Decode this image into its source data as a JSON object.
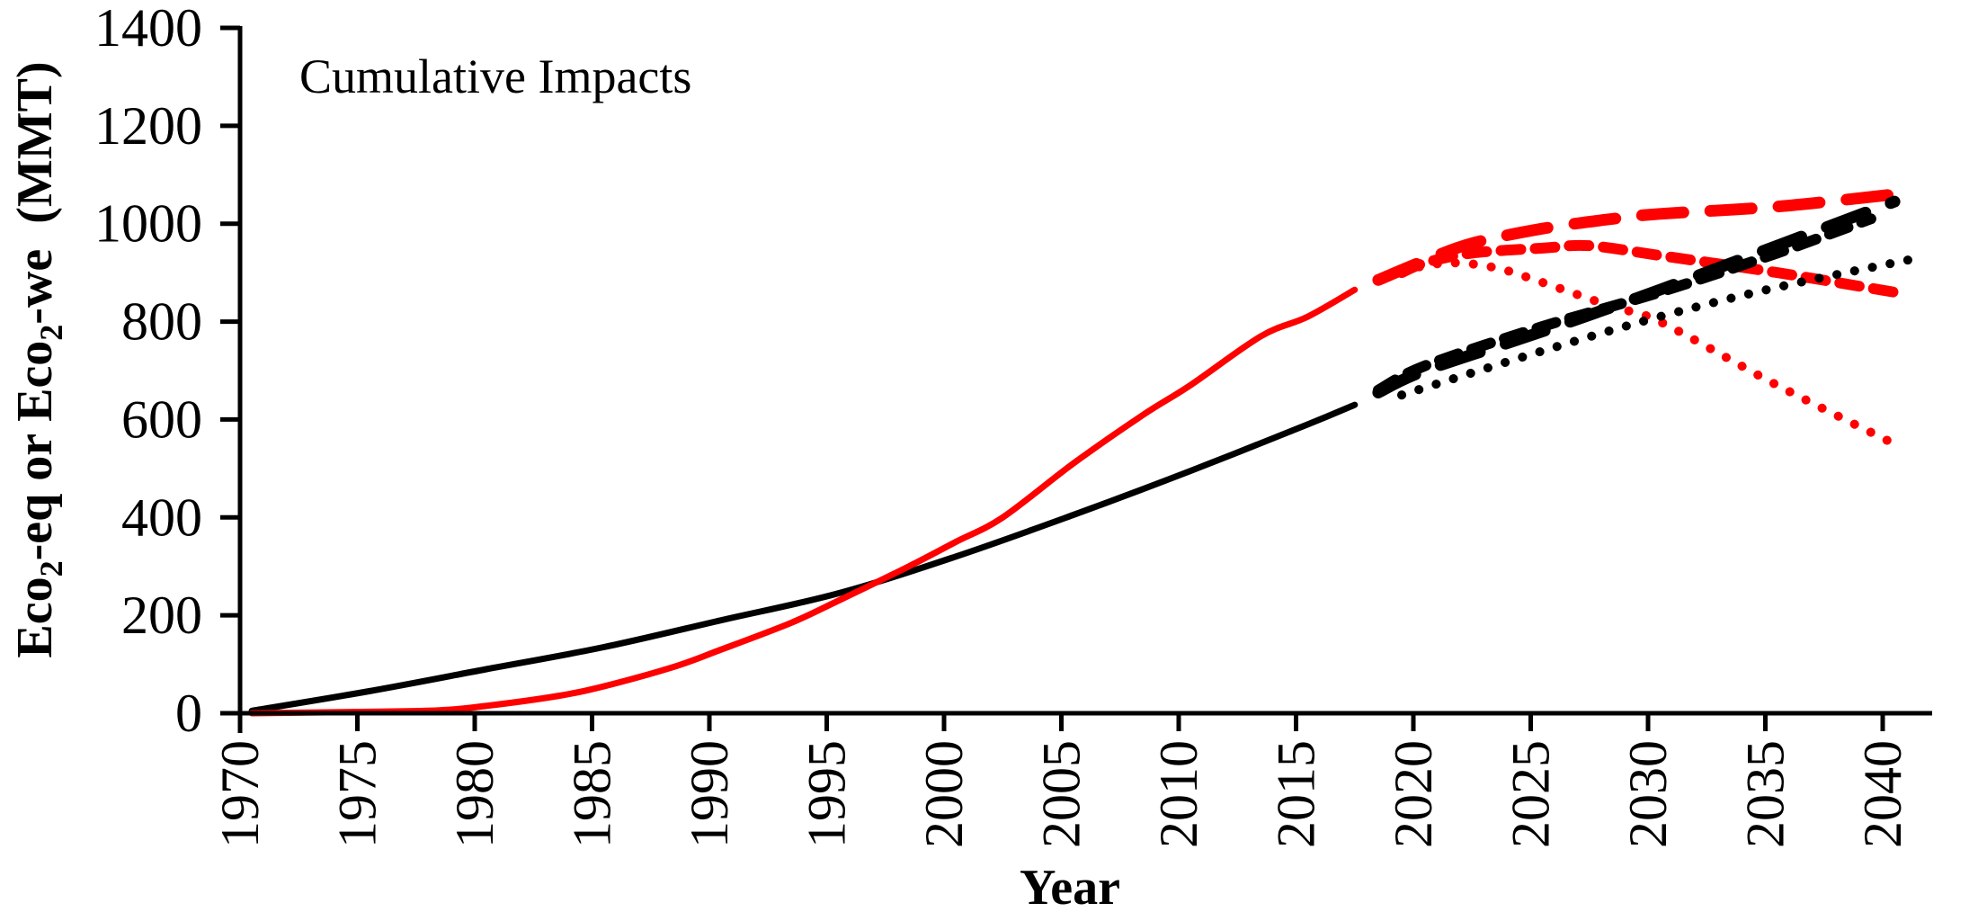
{
  "chart_data": {
    "type": "line",
    "title": "",
    "annotation": "Cumulative Impacts",
    "xlabel": "Year",
    "ylabel": {
      "parts": [
        "Eco",
        "2",
        "-eq or Eco",
        "2",
        "-we  (MMT)"
      ],
      "text": "Eco2-eq or Eco2-we  (MMT)"
    },
    "xlim": [
      1970,
      2041
    ],
    "ylim": [
      0,
      1400
    ],
    "yticks": [
      0,
      200,
      400,
      600,
      800,
      1000,
      1200,
      1400
    ],
    "xticks": [
      1970,
      1975,
      1980,
      1985,
      1990,
      1995,
      2000,
      2005,
      2010,
      2015,
      2020,
      2025,
      2030,
      2035,
      2040
    ],
    "grid": false,
    "legend": "none",
    "series": [
      {
        "name": "black-historical",
        "color": "#000000",
        "style": "solid",
        "x": [
          1970,
          1975,
          1980,
          1985,
          1990,
          1995,
          2000,
          2005,
          2010,
          2015,
          2017
        ],
        "y": [
          5,
          45,
          90,
          135,
          190,
          245,
          320,
          405,
          495,
          590,
          630
        ]
      },
      {
        "name": "red-historical",
        "color": "#ff0000",
        "style": "solid",
        "x": [
          1970,
          1975,
          1978,
          1980,
          1983,
          1985,
          1988,
          1990,
          1993,
          1995,
          1998,
          2000,
          2002,
          2005,
          2008,
          2010,
          2013,
          2015,
          2017
        ],
        "y": [
          0,
          3,
          6,
          15,
          35,
          55,
          95,
          130,
          185,
          230,
          300,
          350,
          400,
          510,
          610,
          670,
          770,
          810,
          865
        ]
      },
      {
        "name": "red-projection-long-dash",
        "color": "#ff0000",
        "style": "long-dash",
        "x": [
          2018,
          2020,
          2022,
          2025,
          2028,
          2030,
          2035,
          2040
        ],
        "y": [
          885,
          925,
          960,
          990,
          1010,
          1020,
          1035,
          1060
        ]
      },
      {
        "name": "red-projection-dash",
        "color": "#ff0000",
        "style": "dash",
        "x": [
          2019,
          2020,
          2022,
          2025,
          2027,
          2030,
          2035,
          2040
        ],
        "y": [
          900,
          920,
          940,
          950,
          955,
          935,
          900,
          860
        ]
      },
      {
        "name": "red-projection-dotted",
        "color": "#ff0000",
        "style": "dot",
        "x": [
          2019,
          2021,
          2023,
          2025,
          2028,
          2030,
          2035,
          2040
        ],
        "y": [
          905,
          920,
          910,
          880,
          830,
          800,
          670,
          550
        ]
      },
      {
        "name": "black-projection-long-dash",
        "color": "#000000",
        "style": "long-dash",
        "x": [
          2018,
          2020,
          2025,
          2030,
          2035,
          2040
        ],
        "y": [
          655,
          700,
          780,
          865,
          955,
          1045
        ]
      },
      {
        "name": "black-projection-dash",
        "color": "#000000",
        "style": "dash",
        "x": [
          2018,
          2020,
          2025,
          2030,
          2035,
          2039
        ],
        "y": [
          660,
          710,
          790,
          860,
          940,
          1010
        ]
      },
      {
        "name": "black-projection-dotted",
        "color": "#000000",
        "style": "dot",
        "x": [
          2019,
          2025,
          2030,
          2035,
          2041
        ],
        "y": [
          650,
          740,
          810,
          870,
          930
        ]
      }
    ]
  }
}
